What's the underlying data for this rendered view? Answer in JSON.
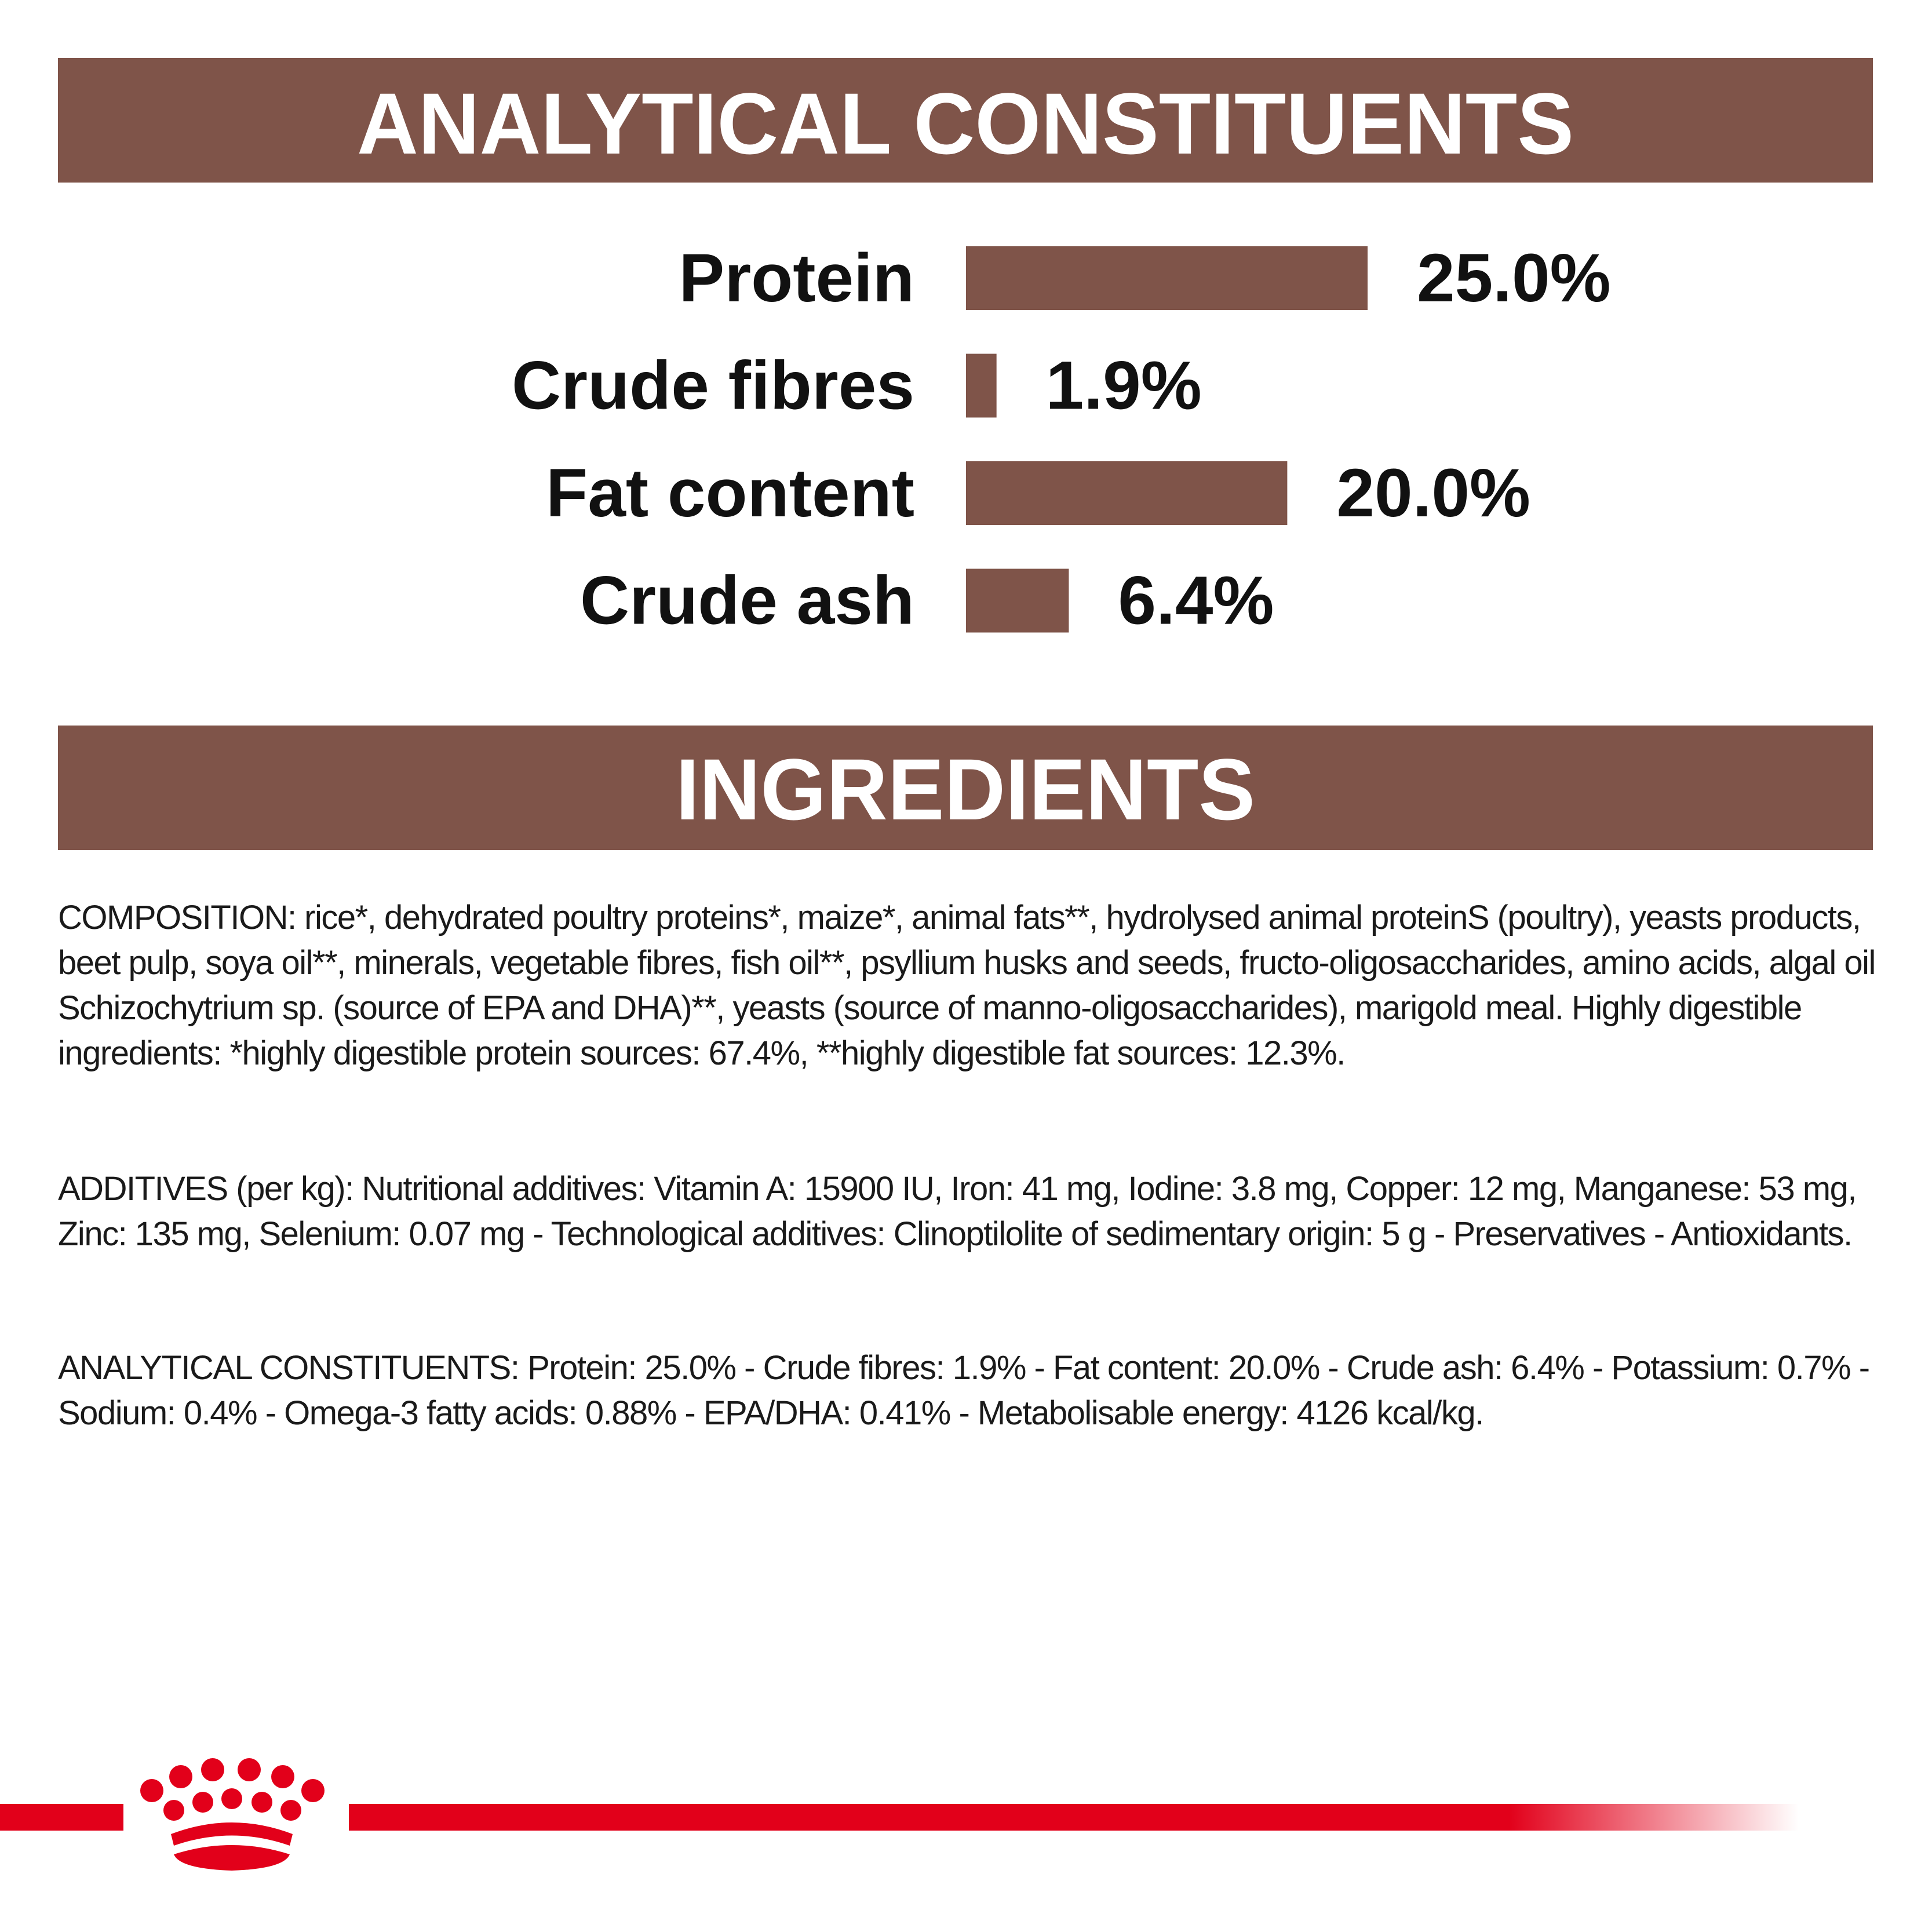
{
  "chart_data": {
    "type": "bar",
    "orientation": "horizontal",
    "title": "ANALYTICAL CONSTITUENTS",
    "categories": [
      "Protein",
      "Crude fibres",
      "Fat content",
      "Crude ash"
    ],
    "values": [
      25.0,
      1.9,
      20.0,
      6.4
    ],
    "value_labels": [
      "25.0%",
      "1.9%",
      "20.0%",
      "6.4%"
    ],
    "color": "#7f5449"
  },
  "ingredients": {
    "title": "INGREDIENTS",
    "paragraphs": [
      "COMPOSITION: rice*, dehydrated poultry proteins*, maize*, animal fats**, hydrolysed animal proteinS (poultry), yeasts products, beet pulp, soya oil**, minerals, vegetable fibres, fish oil**, psyllium husks and seeds, fructo-oligosaccharides, amino acids, algal oil Schizochytrium sp. (source of EPA and DHA)**, yeasts (source of manno-oligosaccharides), marigold meal. Highly digestible ingredients: *highly digestible protein sources: 67.4%, **highly digestible fat sources: 12.3%.",
      "ADDITIVES (per kg): Nutritional additives: Vitamin A: 15900 IU, Iron: 41 mg, Iodine: 3.8 mg, Copper: 12 mg, Manganese: 53 mg, Zinc: 135 mg, Selenium: 0.07 mg - Technological additives: Clinoptilolite of sedimentary origin: 5 g - Preservatives - Antioxidants.",
      "ANALYTICAL CONSTITUENTS: Protein: 25.0% - Crude fibres: 1.9% - Fat content: 20.0% - Crude ash: 6.4% - Potassium: 0.7% - Sodium: 0.4% - Omega-3 fatty acids: 0.88% - EPA/DHA: 0.41% - Metabolisable energy: 4126 kcal/kg."
    ]
  }
}
